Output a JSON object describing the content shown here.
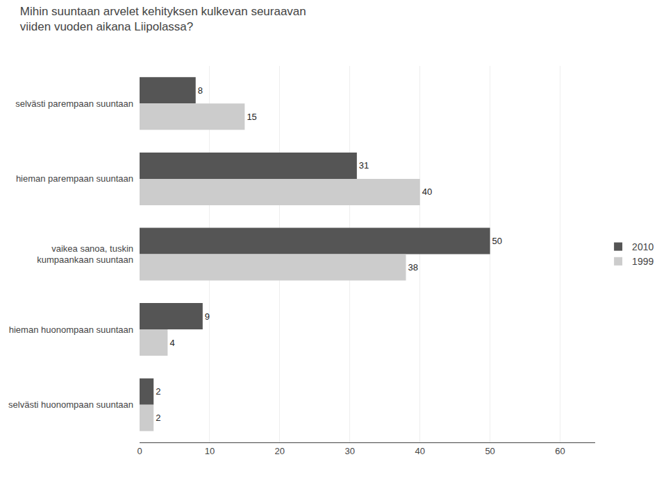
{
  "chart_data": {
    "type": "bar",
    "orientation": "horizontal",
    "title": "Mihin suuntaan arvelet kehityksen kulkevan seuraavan\nviiden vuoden aikana Liipolassa?",
    "categories": [
      "selvästi parempaan suuntaan",
      "hieman parempaan suuntaan",
      "vaikea sanoa, tuskin\nkumpaankaan suuntaan",
      "hieman huonompaan suuntaan",
      "selvästi huonompaan suuntaan"
    ],
    "series": [
      {
        "name": "2010",
        "color": "#555555",
        "values": [
          8,
          31,
          50,
          9,
          2
        ]
      },
      {
        "name": "1999",
        "color": "#cccccc",
        "values": [
          15,
          40,
          38,
          4,
          2
        ]
      }
    ],
    "xlim": [
      0,
      65
    ],
    "xticks": [
      0,
      10,
      20,
      30,
      40,
      50,
      60
    ],
    "grid": true,
    "legend": "right",
    "data_labels": true
  }
}
